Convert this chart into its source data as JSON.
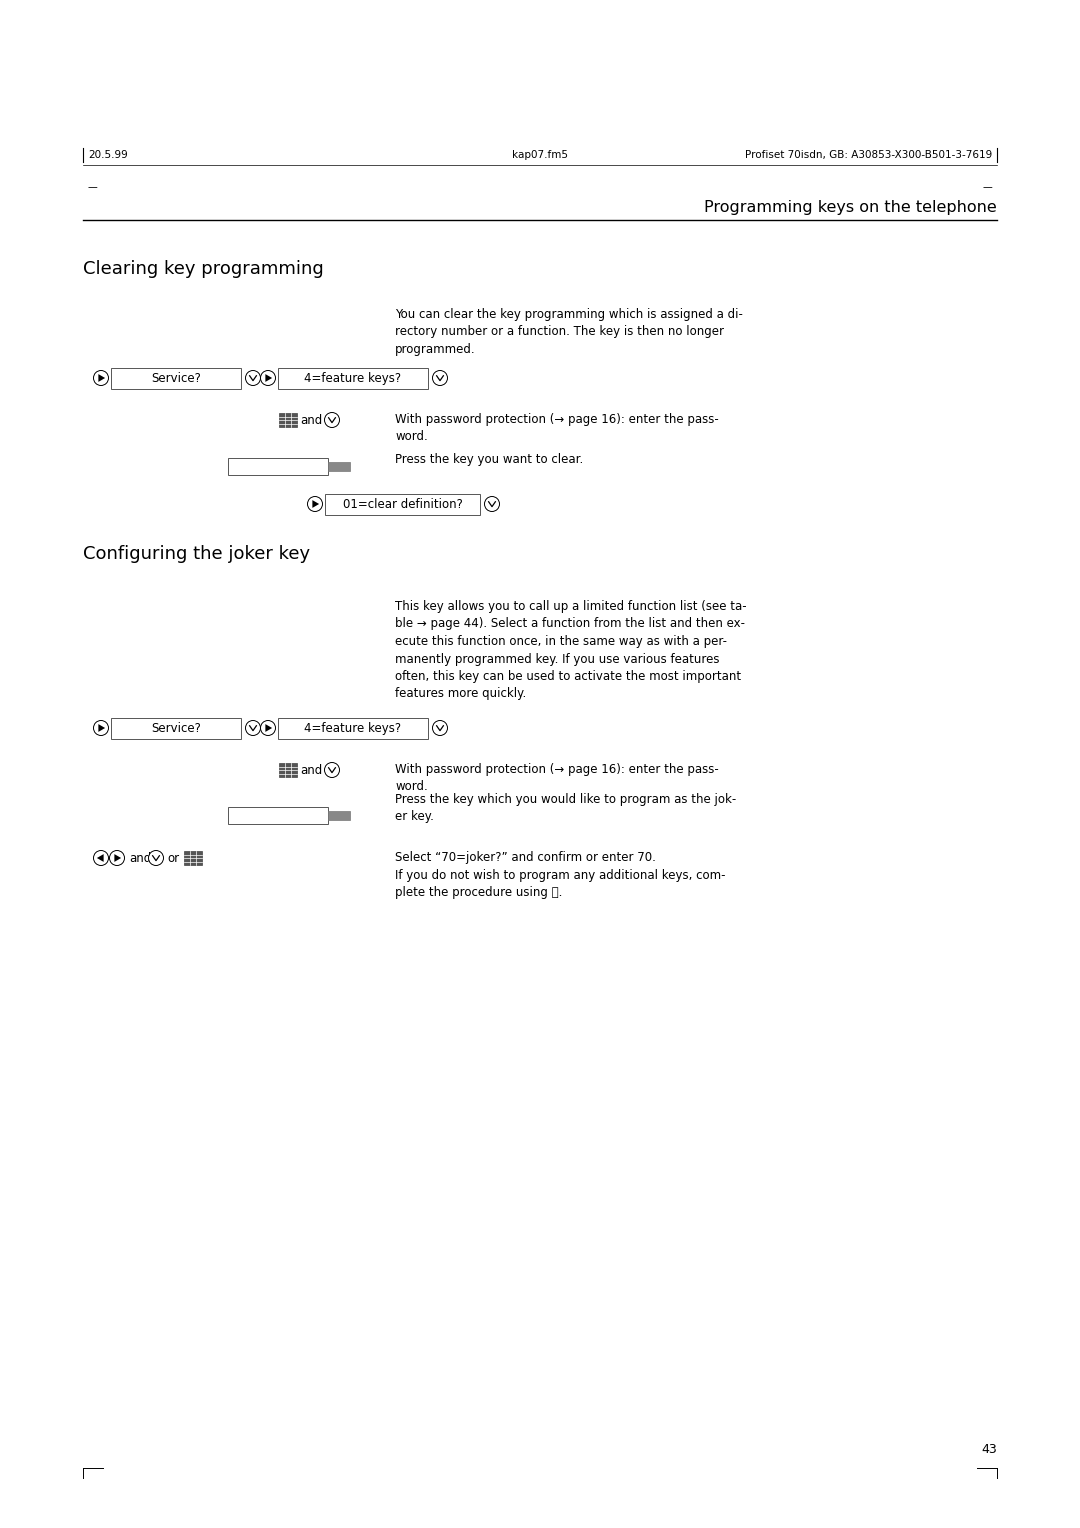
{
  "page_width": 10.8,
  "page_height": 15.28,
  "bg_color": "#ffffff",
  "header_left": "20.5.99",
  "header_center": "kap07.fm5",
  "header_right": "Profiset 70isdn, GB: A30853-X300-B501-3-7619",
  "section_title": "Programming keys on the telephone",
  "section1_heading": "Clearing key programming",
  "section1_intro": "You can clear the key programming which is assigned a di-\nrectory number or a function. The key is then no longer\nprogrammed.",
  "section2_heading": "Configuring the joker key",
  "section2_intro": "This key allows you to call up a limited function list (see ta-\nble → page 44). Select a function from the list and then ex-\necute this function once, in the same way as with a per-\nmanently programmed key. If you use various features\noften, this key can be used to activate the most important\nfeatures more quickly.",
  "box1_text": "Service?",
  "box2_text": "4=feature keys?",
  "box3_text": "01=clear definition?",
  "password_text1": "With password protection (→ page 16): enter the pass-\nword.",
  "press_clear_text": "Press the key you want to clear.",
  "password_text2": "With password protection (→ page 16): enter the pass-\nword.",
  "press_joker_text": "Press the key which you would like to program as the jok-\ner key.",
  "select_joker_text": "Select “70=joker?” and confirm or enter 70.\nIf you do not wish to program any additional keys, com-\nplete the procedure using Ⓡ.",
  "page_number": "43"
}
